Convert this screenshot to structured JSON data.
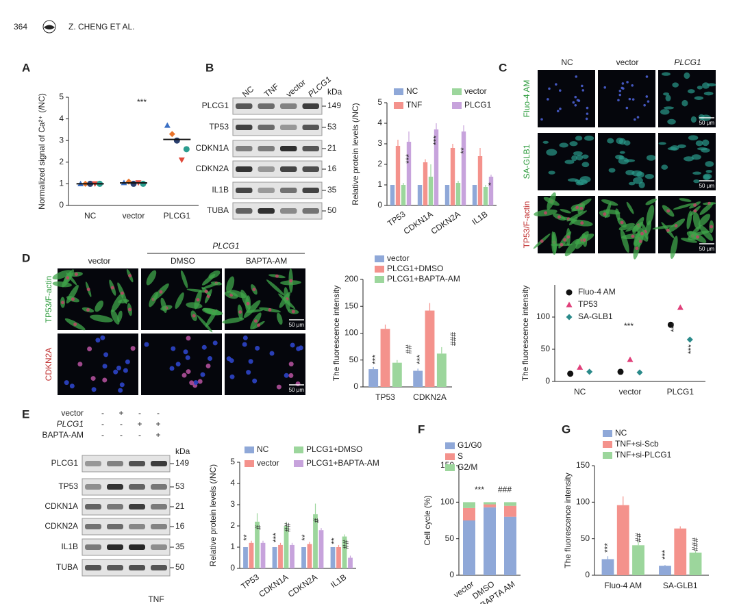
{
  "header": {
    "page": "364",
    "authors": "Z. CHENG ET AL."
  },
  "panels": {
    "labels": [
      "A",
      "B",
      "C",
      "D",
      "E",
      "F",
      "G"
    ],
    "B": {
      "lanes": [
        "NC",
        "TNF",
        "vector",
        "PLCG1"
      ],
      "unit": "kDa",
      "proteins": [
        "PLCG1",
        "TP53",
        "CDKN1A",
        "CDKN2A",
        "IL1B",
        "TUBA"
      ],
      "sizes": [
        "149",
        "53",
        "21",
        "16",
        "35",
        "50"
      ]
    },
    "C": {
      "columns": [
        "NC",
        "vector",
        "PLCG1"
      ],
      "rows": [
        "Fluo-4 AM",
        "SA-GLB1",
        "TP53/F-actin"
      ],
      "scale": "50 μm"
    },
    "D": {
      "group": "PLCG1",
      "columns": [
        "vector",
        "DMSO",
        "BAPTA-AM"
      ],
      "rows": [
        "TP53/F-actin",
        "CDKN2A"
      ],
      "scale": "50 μm"
    },
    "E": {
      "conditions": [
        "vector",
        "PLCG1",
        "BAPTA-AM"
      ],
      "signs": [
        [
          "-",
          "+",
          "-",
          "-"
        ],
        [
          "-",
          "-",
          "+",
          "+"
        ],
        [
          "-",
          "-",
          "-",
          "+"
        ]
      ],
      "unit": "kDa",
      "proteins": [
        "PLCG1",
        "TP53",
        "CDKN1A",
        "CDKN2A",
        "IL1B",
        "TUBA"
      ],
      "sizes": [
        "149",
        "53",
        "21",
        "16",
        "35",
        "50"
      ],
      "treatment": "TNF"
    }
  },
  "chart_data": [
    {
      "type": "dot",
      "y_label": "Normalized signal of Ca²⁺ (/NC)",
      "categories": [
        "NC",
        "vector",
        "PLCG1"
      ],
      "ylim": [
        0,
        5
      ],
      "yticks": [
        0,
        1,
        2,
        3,
        4,
        5
      ],
      "series": [
        {
          "color": "#3a6fc4",
          "marker": "triangle",
          "values": [
            1,
            1.05,
            3.7
          ]
        },
        {
          "color": "#e8732a",
          "marker": "diamond",
          "values": [
            1,
            1.1,
            3.3
          ]
        },
        {
          "color": "#2a3f6e",
          "marker": "circle",
          "values": [
            1,
            1,
            3.0
          ]
        },
        {
          "color": "#e04a3a",
          "marker": "triangle-down",
          "values": [
            1,
            1.05,
            2.1
          ]
        },
        {
          "color": "#2a9d8f",
          "marker": "circle",
          "values": [
            1,
            1,
            2.6
          ]
        }
      ],
      "means": [
        1,
        1.04,
        3.05
      ],
      "annotations": [
        "***"
      ]
    },
    {
      "type": "bar",
      "y_label": "Relative protein levels (/NC)",
      "categories": [
        "TP53",
        "CDKN1A",
        "CDKN2A",
        "IL1B"
      ],
      "ylim": [
        0,
        5
      ],
      "yticks": [
        0,
        1,
        2,
        3,
        4,
        5
      ],
      "series": [
        {
          "name": "NC",
          "color": "#8fa8d8",
          "values": [
            1,
            1,
            1,
            1
          ],
          "errors": [
            0,
            0,
            0,
            0
          ]
        },
        {
          "name": "TNF",
          "color": "#f4928c",
          "values": [
            2.9,
            2.1,
            2.8,
            2.4
          ],
          "errors": [
            0.3,
            0.15,
            0.2,
            0.4
          ]
        },
        {
          "name": "vector",
          "color": "#9cd69c",
          "values": [
            1,
            1.4,
            1.1,
            0.9
          ],
          "errors": [
            0.1,
            0.6,
            0.1,
            0.1
          ]
        },
        {
          "name": "PLCG1",
          "color": "#c7a3dc",
          "values": [
            3.1,
            3.7,
            3.6,
            1.4
          ],
          "errors": [
            0.5,
            0.3,
            0.3,
            0.1
          ]
        }
      ],
      "annotations": [
        "***",
        "***",
        "**",
        "*"
      ]
    },
    {
      "type": "bar",
      "y_label": "The fluorescence intensity",
      "categories": [
        "TP53",
        "CDKN2A"
      ],
      "ylim": [
        0,
        200
      ],
      "yticks": [
        0,
        50,
        100,
        150,
        200
      ],
      "series": [
        {
          "name": "vector",
          "color": "#8fa8d8",
          "values": [
            33,
            30
          ],
          "errors": [
            4,
            4
          ]
        },
        {
          "name": "PLCG1+DMSO",
          "color": "#f4928c",
          "values": [
            108,
            142
          ],
          "errors": [
            8,
            14
          ]
        },
        {
          "name": "PLCG1+BAPTA-AM",
          "color": "#9cd69c",
          "values": [
            45,
            62
          ],
          "errors": [
            5,
            12
          ]
        }
      ],
      "annotations": [
        "***",
        "##",
        "***",
        "###"
      ]
    },
    {
      "type": "dot",
      "y_label": "The fluorescence intensity",
      "categories": [
        "NC",
        "vector",
        "PLCG1"
      ],
      "ylim": [
        0,
        150
      ],
      "yticks": [
        0,
        50,
        100
      ],
      "series": [
        {
          "name": "Fluo-4 AM",
          "color": "#111111",
          "marker": "circle",
          "values": [
            12,
            15,
            88
          ]
        },
        {
          "name": "TP53",
          "color": "#e0407a",
          "marker": "triangle",
          "values": [
            22,
            34,
            115
          ]
        },
        {
          "name": "SA-GLB1",
          "color": "#2a8a8a",
          "marker": "diamond",
          "values": [
            15,
            14,
            65
          ]
        }
      ],
      "annotations": [
        "***",
        "***",
        "***"
      ]
    },
    {
      "type": "bar",
      "y_label": "Relative protein levels (/NC)",
      "categories": [
        "TP53",
        "CDKN1A",
        "CDKN2A",
        "IL1B"
      ],
      "ylim": [
        0,
        5
      ],
      "yticks": [
        0,
        1,
        2,
        3,
        4,
        5
      ],
      "series": [
        {
          "name": "NC",
          "color": "#8fa8d8",
          "values": [
            1,
            1,
            1,
            1
          ],
          "errors": [
            0,
            0,
            0,
            0
          ]
        },
        {
          "name": "vector",
          "color": "#f4928c",
          "values": [
            1.2,
            1.1,
            1.15,
            1.0
          ],
          "errors": [
            0.1,
            0.1,
            0.1,
            0.1
          ]
        },
        {
          "name": "PLCG1+DMSO",
          "color": "#9cd69c",
          "values": [
            2.2,
            2.0,
            2.55,
            1.5
          ],
          "errors": [
            0.4,
            0.2,
            0.5,
            0.1
          ]
        },
        {
          "name": "PLCG1+BAPTA-AM",
          "color": "#c7a3dc",
          "values": [
            1.2,
            1.1,
            1.8,
            0.5
          ],
          "errors": [
            0.1,
            0.1,
            0.1,
            0.1
          ]
        }
      ],
      "annotations": [
        "**",
        "#",
        "***",
        "##",
        "**",
        "#",
        "**",
        "##"
      ]
    },
    {
      "type": "bar",
      "stacked": true,
      "y_label": "Cell cycle (%)",
      "categories": [
        "vector",
        "DMSO",
        "BAPTA AM"
      ],
      "ylim": [
        0,
        150
      ],
      "yticks": [
        0,
        50,
        100,
        150
      ],
      "series": [
        {
          "name": "G1/G0",
          "color": "#8fa8d8",
          "values": [
            75,
            93,
            80
          ]
        },
        {
          "name": "S",
          "color": "#f4928c",
          "values": [
            17,
            4,
            15
          ]
        },
        {
          "name": "G2/M",
          "color": "#9cd69c",
          "values": [
            8,
            3,
            5
          ]
        }
      ],
      "annotations": [
        "***",
        "###"
      ]
    },
    {
      "type": "bar",
      "y_label": "The fluorescence intensity",
      "categories": [
        "Fluo-4 AM",
        "SA-GLB1"
      ],
      "ylim": [
        0,
        150
      ],
      "yticks": [
        0,
        50,
        100,
        150
      ],
      "series": [
        {
          "name": "NC",
          "color": "#8fa8d8",
          "values": [
            22,
            13
          ],
          "errors": [
            4,
            1
          ]
        },
        {
          "name": "TNF+si-Scb",
          "color": "#f4928c",
          "values": [
            96,
            64
          ],
          "errors": [
            12,
            3
          ]
        },
        {
          "name": "TNF+si-PLCG1",
          "color": "#9cd69c",
          "values": [
            41,
            31
          ],
          "errors": [
            5,
            2
          ]
        }
      ],
      "annotations": [
        "***",
        "##",
        "***",
        "###"
      ]
    }
  ]
}
